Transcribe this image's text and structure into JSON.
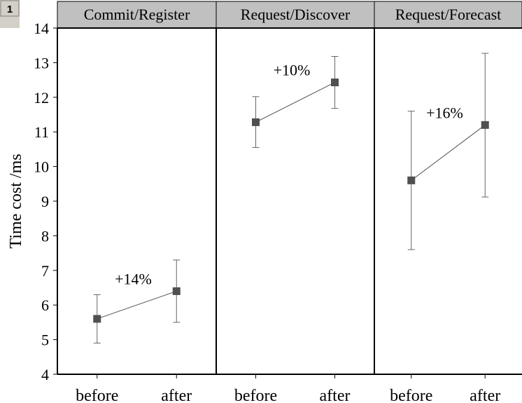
{
  "badge": "1",
  "chart_data": {
    "type": "scatter",
    "ylabel": "Time cost /ms",
    "ylim": [
      4,
      14
    ],
    "yticks": [
      4,
      5,
      6,
      7,
      8,
      9,
      10,
      11,
      12,
      13,
      14
    ],
    "categories": [
      "before",
      "after"
    ],
    "colors": {
      "marker": "#505050",
      "line": "#505050",
      "error_bar": "#666666",
      "panel_header": "#c0c0c0",
      "frame": "#000000"
    },
    "panels": [
      {
        "title": "Commit/Register",
        "annotation": "+14%",
        "points": [
          {
            "x": "before",
            "y": 5.6,
            "err_low": 4.9,
            "err_high": 6.3
          },
          {
            "x": "after",
            "y": 6.4,
            "err_low": 5.5,
            "err_high": 7.3
          }
        ]
      },
      {
        "title": "Request/Discover",
        "annotation": "+10%",
        "points": [
          {
            "x": "before",
            "y": 11.28,
            "err_low": 10.55,
            "err_high": 12.02
          },
          {
            "x": "after",
            "y": 12.43,
            "err_low": 11.68,
            "err_high": 13.18
          }
        ]
      },
      {
        "title": "Request/Forecast",
        "annotation": "+16%",
        "points": [
          {
            "x": "before",
            "y": 9.6,
            "err_low": 7.6,
            "err_high": 11.6
          },
          {
            "x": "after",
            "y": 11.2,
            "err_low": 9.12,
            "err_high": 13.27
          }
        ]
      }
    ]
  }
}
